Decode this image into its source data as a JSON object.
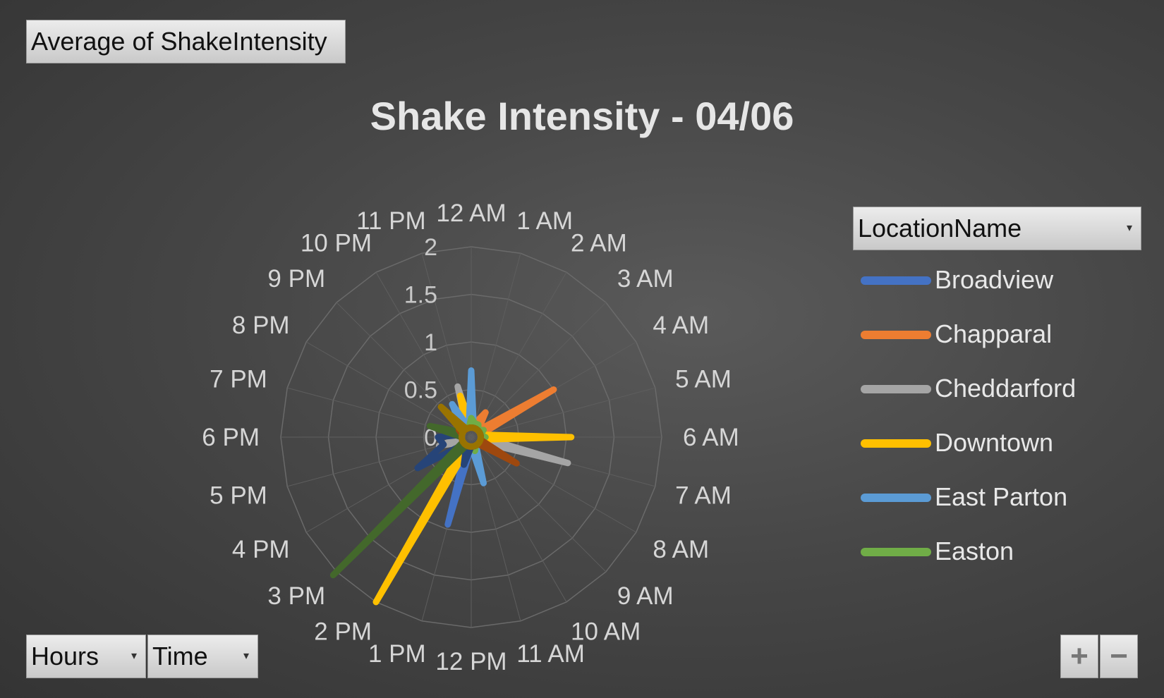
{
  "value_field": {
    "label": "Average  of ShakeIntensity"
  },
  "legend_field": {
    "label": "LocationName",
    "arrow": "▾"
  },
  "axis_fields": [
    {
      "label": "Hours",
      "arrow": "▾"
    },
    {
      "label": "Time",
      "arrow": "▾"
    }
  ],
  "zoom": {
    "in_label": "+",
    "out_label": "−"
  },
  "chart_data": {
    "type": "radar",
    "title": "Shake Intensity - 04/06",
    "categories": [
      "12 AM",
      "1 AM",
      "2 AM",
      "3 AM",
      "4 AM",
      "5 AM",
      "6 AM",
      "7 AM",
      "8 AM",
      "9 AM",
      "10 AM",
      "11 AM",
      "12 PM",
      "1 PM",
      "2 PM",
      "3 PM",
      "4 PM",
      "5 PM",
      "6 PM",
      "7 PM",
      "8 PM",
      "9 PM",
      "10 PM",
      "11 PM"
    ],
    "rlim": [
      0,
      2
    ],
    "r_ticks": [
      "0",
      "0.5",
      "1",
      "1.5",
      "2"
    ],
    "grid": true,
    "legend": {
      "position": "right",
      "title": "LocationName"
    },
    "series": [
      {
        "name": "Broadview",
        "color": "#4472c4",
        "values": [
          0.1,
          0.1,
          0.1,
          0.1,
          0.1,
          0.1,
          0.1,
          0.1,
          0.1,
          0.1,
          0.1,
          0.1,
          0.1,
          0.95,
          0.1,
          0.1,
          0.1,
          0.1,
          0.1,
          0.1,
          0.1,
          0.1,
          0.1,
          0.1
        ]
      },
      {
        "name": "Chapparal",
        "color": "#ed7d31",
        "values": [
          0.1,
          0.15,
          0.3,
          0.1,
          1.0,
          0.1,
          0.1,
          0.1,
          0.45,
          0.1,
          0.1,
          0.1,
          0.1,
          0.15,
          0.1,
          0.1,
          0.1,
          0.1,
          0.1,
          0.1,
          0.1,
          0.15,
          0.1,
          0.1
        ]
      },
      {
        "name": "Cheddarford",
        "color": "#a5a5a5",
        "values": [
          0.1,
          0.1,
          0.1,
          0.1,
          0.1,
          0.1,
          0.1,
          1.05,
          0.1,
          0.1,
          0.1,
          0.1,
          0.1,
          0.1,
          0.1,
          0.1,
          0.1,
          0.35,
          0.1,
          0.2,
          0.1,
          0.1,
          0.1,
          0.55
        ]
      },
      {
        "name": "Downtown",
        "color": "#ffc000",
        "values": [
          0.15,
          0.1,
          0.1,
          0.1,
          0.1,
          0.1,
          1.05,
          0.1,
          0.1,
          0.1,
          0.1,
          0.1,
          0.1,
          0.1,
          2.0,
          0.1,
          0.1,
          0.1,
          0.1,
          0.1,
          0.1,
          0.1,
          0.1,
          0.45
        ]
      },
      {
        "name": "East Parton",
        "color": "#5b9bd5",
        "values": [
          0.7,
          0.1,
          0.1,
          0.1,
          0.1,
          0.1,
          0.1,
          0.1,
          0.1,
          0.1,
          0.1,
          0.5,
          0.1,
          0.1,
          0.1,
          0.1,
          0.1,
          0.1,
          0.1,
          0.1,
          0.1,
          0.15,
          0.4,
          0.1
        ]
      },
      {
        "name": "Easton",
        "color": "#70ad47",
        "values": [
          0.2,
          0.15,
          0.15,
          0.1,
          0.15,
          0.1,
          0.15,
          0.1,
          0.15,
          0.1,
          0.1,
          0.15,
          0.1,
          0.1,
          0.1,
          0.1,
          0.1,
          0.1,
          0.1,
          0.1,
          0.15,
          0.1,
          0.1,
          0.1
        ]
      },
      {
        "name": "",
        "color": "#264478",
        "values": [
          0.1,
          0.1,
          0.1,
          0.1,
          0.1,
          0.1,
          0.1,
          0.1,
          0.1,
          0.1,
          0.1,
          0.1,
          0.1,
          0.3,
          0.1,
          0.1,
          0.65,
          0.3,
          0.35,
          0.1,
          0.1,
          0.1,
          0.1,
          0.1
        ]
      },
      {
        "name": "",
        "color": "#43682b",
        "values": [
          0.1,
          0.1,
          0.1,
          0.1,
          0.1,
          0.1,
          0.1,
          0.1,
          0.1,
          0.1,
          0.1,
          0.1,
          0.1,
          0.1,
          0.1,
          2.05,
          0.1,
          0.1,
          0.1,
          0.45,
          0.1,
          0.1,
          0.1,
          0.1
        ]
      },
      {
        "name": "",
        "color": "#9e480e",
        "values": [
          0.1,
          0.1,
          0.1,
          0.1,
          0.1,
          0.1,
          0.1,
          0.1,
          0.55,
          0.1,
          0.1,
          0.1,
          0.1,
          0.1,
          0.1,
          0.1,
          0.1,
          0.1,
          0.1,
          0.1,
          0.15,
          0.1,
          0.1,
          0.1
        ]
      },
      {
        "name": "",
        "color": "#997300",
        "values": [
          0.1,
          0.1,
          0.1,
          0.1,
          0.1,
          0.1,
          0.1,
          0.1,
          0.1,
          0.1,
          0.1,
          0.1,
          0.1,
          0.1,
          0.1,
          0.1,
          0.1,
          0.1,
          0.1,
          0.1,
          0.1,
          0.45,
          0.1,
          0.1
        ]
      }
    ]
  }
}
